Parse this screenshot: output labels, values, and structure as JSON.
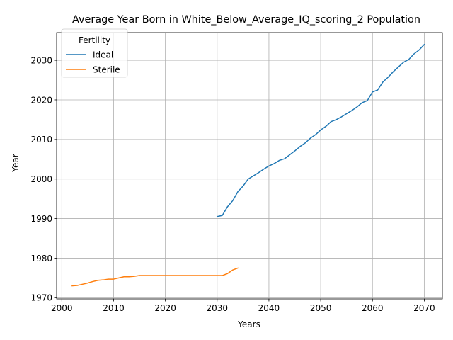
{
  "chart_data": {
    "type": "line",
    "title": "Average Year Born in White_Below_Average_IQ_scoring_2 Population",
    "xlabel": "Years",
    "ylabel": "Year",
    "xlim": [
      1999,
      2073.5
    ],
    "ylim": [
      1969.7,
      2037
    ],
    "xticks": [
      2000,
      2010,
      2020,
      2030,
      2040,
      2050,
      2060,
      2070
    ],
    "yticks": [
      1970,
      1980,
      1990,
      2000,
      2010,
      2020,
      2030
    ],
    "grid": true,
    "legend": {
      "title": "Fertility",
      "position": "upper-left"
    },
    "series": [
      {
        "name": "Ideal",
        "color": "#1f77b4",
        "x": [
          2030,
          2031,
          2032,
          2033,
          2034,
          2035,
          2036,
          2037,
          2038,
          2039,
          2040,
          2041,
          2042,
          2043,
          2044,
          2045,
          2046,
          2047,
          2048,
          2049,
          2050,
          2051,
          2052,
          2053,
          2054,
          2055,
          2056,
          2057,
          2058,
          2059,
          2060,
          2061,
          2062,
          2063,
          2064,
          2065,
          2066,
          2067,
          2068,
          2069,
          2070
        ],
        "y": [
          1990.5,
          1990.8,
          1993.0,
          1994.5,
          1996.8,
          1998.2,
          2000.0,
          2000.8,
          2001.6,
          2002.5,
          2003.3,
          2003.9,
          2004.7,
          2005.1,
          2006.1,
          2007.1,
          2008.2,
          2009.1,
          2010.3,
          2011.2,
          2012.4,
          2013.3,
          2014.5,
          2015.0,
          2015.7,
          2016.5,
          2017.3,
          2018.2,
          2019.3,
          2019.8,
          2022.0,
          2022.5,
          2024.5,
          2025.7,
          2027.1,
          2028.3,
          2029.5,
          2030.2,
          2031.6,
          2032.6,
          2034.0
        ]
      },
      {
        "name": "Sterile",
        "color": "#ff7f0e",
        "x": [
          2002,
          2003,
          2004,
          2005,
          2006,
          2007,
          2008,
          2009,
          2010,
          2011,
          2012,
          2013,
          2014,
          2015,
          2016,
          2017,
          2018,
          2019,
          2020,
          2021,
          2022,
          2023,
          2024,
          2025,
          2026,
          2027,
          2028,
          2029,
          2030,
          2031,
          2032,
          2033,
          2034
        ],
        "y": [
          1973.0,
          1973.1,
          1973.4,
          1973.7,
          1974.1,
          1974.4,
          1974.5,
          1974.7,
          1974.7,
          1975.0,
          1975.3,
          1975.3,
          1975.4,
          1975.6,
          1975.6,
          1975.6,
          1975.6,
          1975.6,
          1975.6,
          1975.6,
          1975.6,
          1975.6,
          1975.6,
          1975.6,
          1975.6,
          1975.6,
          1975.6,
          1975.6,
          1975.6,
          1975.6,
          1976.1,
          1977.0,
          1977.5
        ]
      }
    ]
  }
}
